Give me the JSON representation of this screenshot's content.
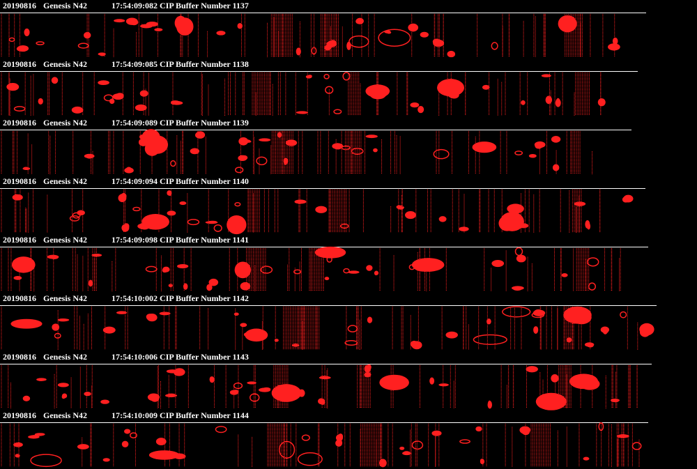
{
  "strips": [
    {
      "date": "20190816",
      "platform": "Genesis N42",
      "title": "17:54:09:082 CIP Buffer Number 1137"
    },
    {
      "date": "20190816",
      "platform": "Genesis N42",
      "title": "17:54:09:085 CIP Buffer Number 1138"
    },
    {
      "date": "20190816",
      "platform": "Genesis N42",
      "title": "17:54:09:089 CIP Buffer Number 1139"
    },
    {
      "date": "20190816",
      "platform": "Genesis N42",
      "title": "17:54:09:094 CIP Buffer Number 1140"
    },
    {
      "date": "20190816",
      "platform": "Genesis N42",
      "title": "17:54:09:098 CIP Buffer Number 1141"
    },
    {
      "date": "20190816",
      "platform": "Genesis N42",
      "title": "17:54:10:002 CIP Buffer Number 1142"
    },
    {
      "date": "20190816",
      "platform": "Genesis N42",
      "title": "17:54:10:006 CIP Buffer Number 1143"
    },
    {
      "date": "20190816",
      "platform": "Genesis N42",
      "title": "17:54:10:009 CIP Buffer Number 1144"
    }
  ]
}
